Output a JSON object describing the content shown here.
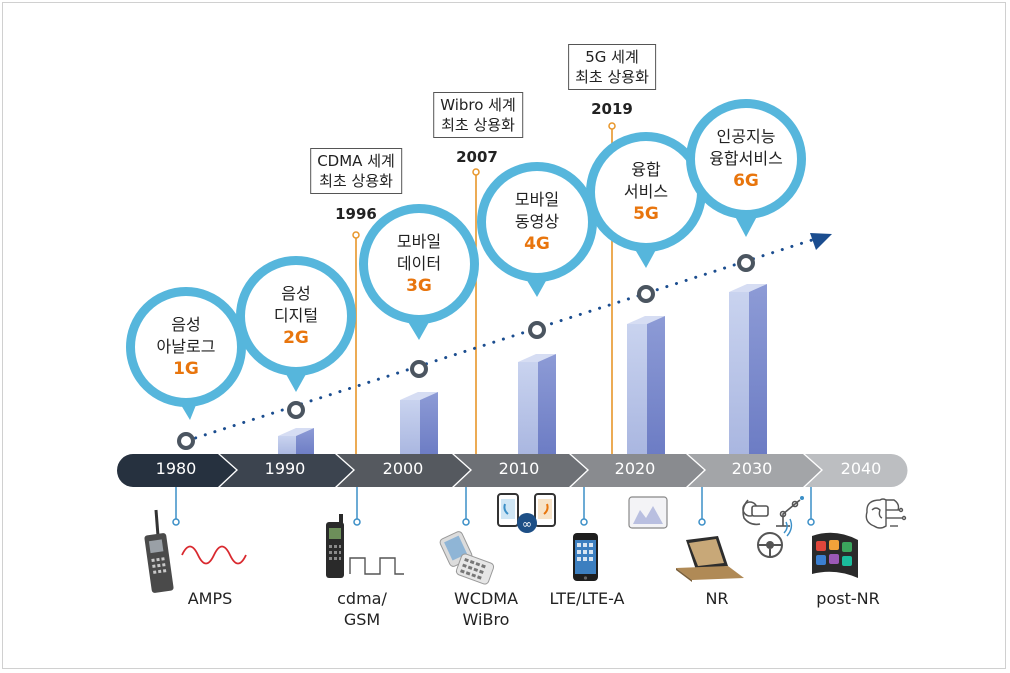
{
  "bubbles": [
    {
      "line1": "음성",
      "line2": "아날로그",
      "gen": "1G"
    },
    {
      "line1": "음성",
      "line2": "디지털",
      "gen": "2G"
    },
    {
      "line1": "모바일",
      "line2": "데이터",
      "gen": "3G"
    },
    {
      "line1": "모바일",
      "line2": "동영상",
      "gen": "4G"
    },
    {
      "line1": "융합",
      "line2": "서비스",
      "gen": "5G"
    },
    {
      "line1": "인공지능",
      "line2": "융합서비스",
      "gen": "6G"
    }
  ],
  "milestones": [
    {
      "line1": "CDMA 세계",
      "line2": "최초 상용화",
      "year": "1996"
    },
    {
      "line1": "Wibro 세계",
      "line2": "최초 상용화",
      "year": "2007"
    },
    {
      "line1": "5G 세계",
      "line2": "최초 상용화",
      "year": "2019"
    }
  ],
  "timeline": [
    "1980",
    "1990",
    "2000",
    "2010",
    "2020",
    "2030",
    "2040"
  ],
  "technologies": [
    {
      "line1": "AMPS",
      "line2": ""
    },
    {
      "line1": "cdma/",
      "line2": "GSM"
    },
    {
      "line1": "WCDMA",
      "line2": "WiBro"
    },
    {
      "line1": "LTE/LTE-A",
      "line2": ""
    },
    {
      "line1": "NR",
      "line2": ""
    },
    {
      "line1": "post-NR",
      "line2": ""
    }
  ],
  "colors": {
    "bubble": "#56b6dc",
    "generation_text": "#e8750d",
    "milestone_line": "#e8962a",
    "trend_arrow": "#1b4d8f",
    "bar_front": "#b7c3e6",
    "bar_side": "#7f8fcf"
  },
  "icons": [
    "brick-phone-icon",
    "sine-wave-icon",
    "feature-phone-icon",
    "square-wave-icon",
    "flip-phone-icon",
    "video-call-phones-icon",
    "smartphone-icon",
    "tablet-icon",
    "laptop-icon",
    "vr-headset-icon",
    "robot-arm-icon",
    "steering-wheel-icon",
    "wearable-display-icon",
    "ai-brain-icon"
  ]
}
